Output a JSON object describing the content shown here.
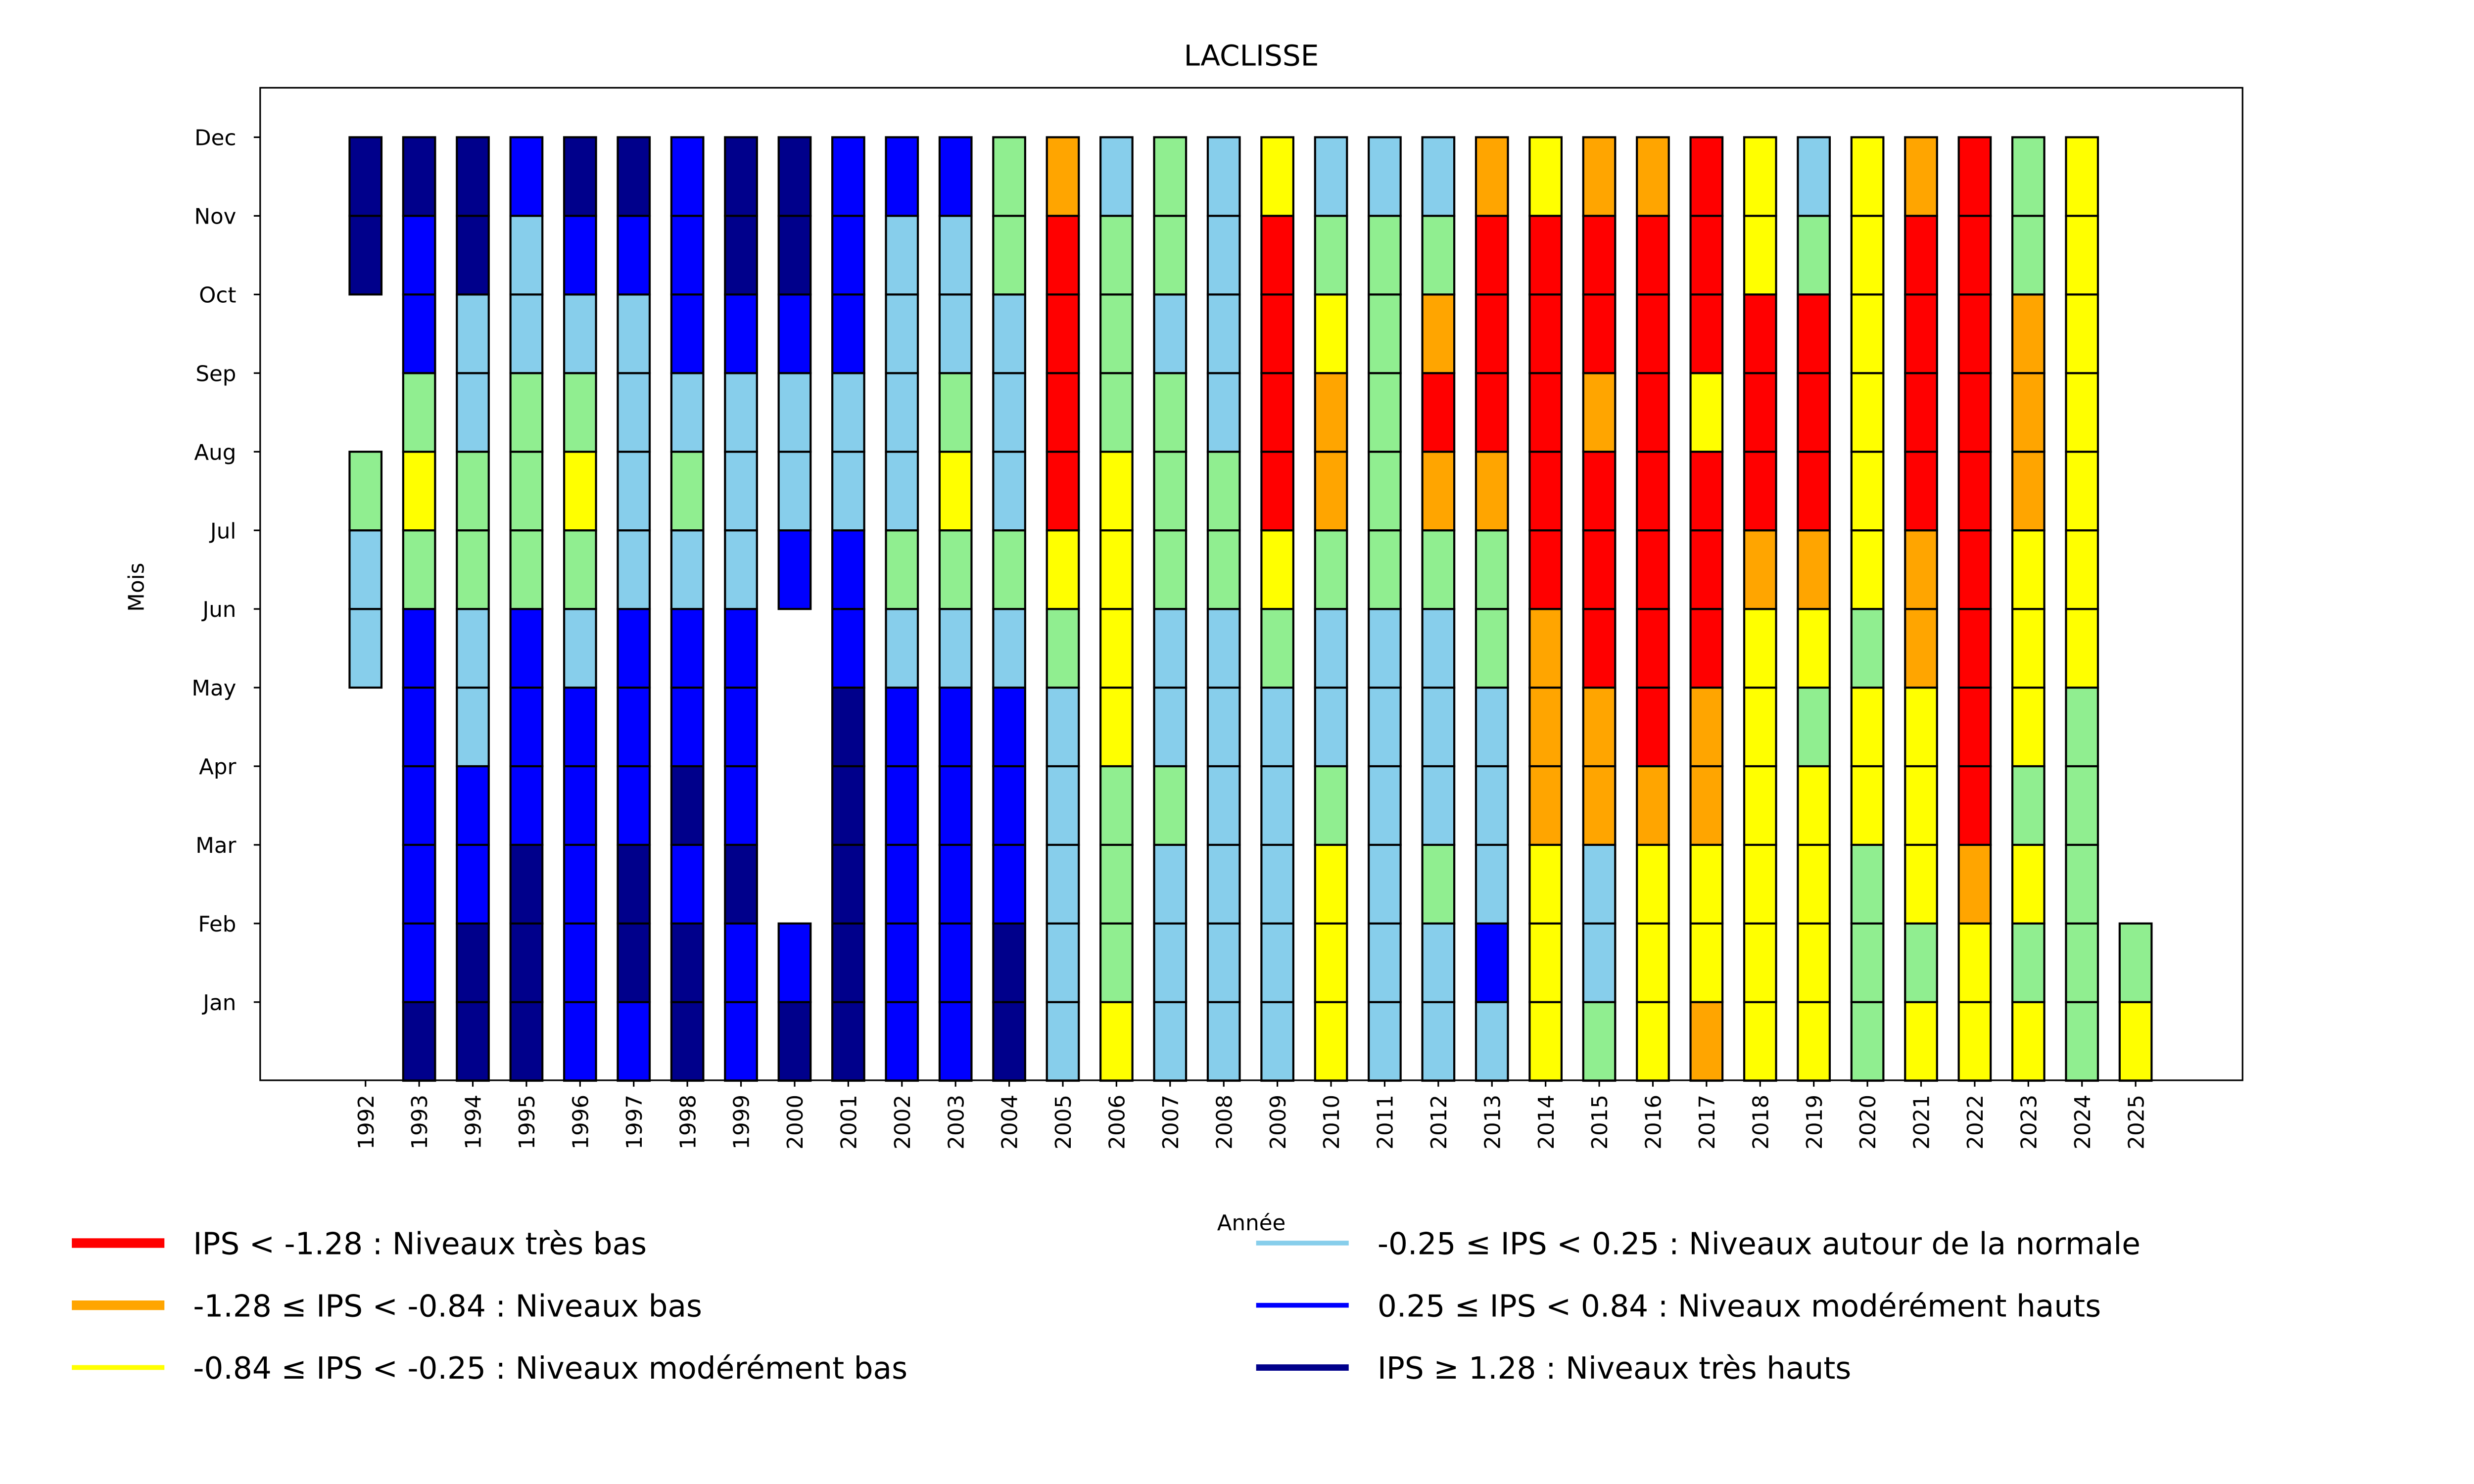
{
  "chart_data": {
    "type": "heatmap",
    "title": "LACLISSE",
    "xlabel": "Année",
    "ylabel": "Mois",
    "months": [
      "Jan",
      "Feb",
      "Mar",
      "Apr",
      "May",
      "Jun",
      "Jul",
      "Aug",
      "Sep",
      "Oct",
      "Nov",
      "Dec"
    ],
    "years": [
      "1992",
      "1993",
      "1994",
      "1995",
      "1996",
      "1997",
      "1998",
      "1999",
      "2000",
      "2001",
      "2002",
      "2003",
      "2004",
      "2005",
      "2006",
      "2007",
      "2008",
      "2009",
      "2010",
      "2011",
      "2012",
      "2013",
      "2014",
      "2015",
      "2016",
      "2017",
      "2018",
      "2019",
      "2020",
      "2021",
      "2022",
      "2023",
      "2024",
      "2025"
    ],
    "categories": {
      "R": {
        "color": "#ff0000",
        "label": "IPS < -1.28 : Niveaux très bas"
      },
      "O": {
        "color": "#ffa500",
        "label": "-1.28 ≤ IPS < -0.84 : Niveaux bas"
      },
      "Y": {
        "color": "#ffff00",
        "label": "-0.84 ≤ IPS < -0.25 : Niveaux modérément bas"
      },
      "G": {
        "color": "#90ee90",
        "label": ""
      },
      "L": {
        "color": "#87ceeb",
        "label": "-0.25 ≤ IPS < 0.25 : Niveaux autour de la normale"
      },
      "B": {
        "color": "#0000ff",
        "label": "0.25 ≤ IPS < 0.84 : Niveaux modérément hauts"
      },
      "D": {
        "color": "#00008b",
        "label": "IPS ≥ 1.28 : Niveaux très hauts"
      }
    },
    "values_jan_to_dec": {
      "1992": [
        null,
        null,
        null,
        null,
        null,
        "L",
        "L",
        "G",
        null,
        null,
        "D",
        "D"
      ],
      "1993": [
        "D",
        "B",
        "B",
        "B",
        "B",
        "B",
        "G",
        "Y",
        "G",
        "B",
        "B",
        "D"
      ],
      "1994": [
        "D",
        "D",
        "B",
        "B",
        "L",
        "L",
        "G",
        "G",
        "L",
        "L",
        "D",
        "D"
      ],
      "1995": [
        "D",
        "D",
        "D",
        "B",
        "B",
        "B",
        "G",
        "G",
        "G",
        "L",
        "L",
        "B"
      ],
      "1996": [
        "B",
        "B",
        "B",
        "B",
        "B",
        "L",
        "G",
        "Y",
        "G",
        "L",
        "B",
        "D"
      ],
      "1997": [
        "B",
        "D",
        "D",
        "B",
        "B",
        "B",
        "L",
        "L",
        "L",
        "L",
        "B",
        "D"
      ],
      "1998": [
        "D",
        "D",
        "B",
        "D",
        "B",
        "B",
        "L",
        "G",
        "L",
        "B",
        "B",
        "B"
      ],
      "1999": [
        "B",
        "B",
        "D",
        "B",
        "B",
        "B",
        "L",
        "L",
        "L",
        "B",
        "D",
        "D"
      ],
      "2000": [
        "D",
        "B",
        null,
        null,
        null,
        null,
        "B",
        "L",
        "L",
        "B",
        "D",
        "D"
      ],
      "2001": [
        "D",
        "D",
        "D",
        "D",
        "D",
        "B",
        "B",
        "L",
        "L",
        "B",
        "B",
        "B"
      ],
      "2002": [
        "B",
        "B",
        "B",
        "B",
        "B",
        "L",
        "G",
        "L",
        "L",
        "L",
        "L",
        "B"
      ],
      "2003": [
        "B",
        "B",
        "B",
        "B",
        "B",
        "L",
        "G",
        "Y",
        "G",
        "L",
        "L",
        "B"
      ],
      "2004": [
        "D",
        "D",
        "B",
        "B",
        "B",
        "L",
        "G",
        "L",
        "L",
        "L",
        "G",
        "G"
      ],
      "2005": [
        "L",
        "L",
        "L",
        "L",
        "L",
        "G",
        "Y",
        "R",
        "R",
        "R",
        "R",
        "O"
      ],
      "2006": [
        "Y",
        "G",
        "G",
        "G",
        "Y",
        "Y",
        "Y",
        "Y",
        "G",
        "G",
        "G",
        "L"
      ],
      "2007": [
        "L",
        "L",
        "L",
        "G",
        "L",
        "L",
        "G",
        "G",
        "G",
        "L",
        "G",
        "G"
      ],
      "2008": [
        "L",
        "L",
        "L",
        "L",
        "L",
        "L",
        "G",
        "G",
        "L",
        "L",
        "L",
        "L"
      ],
      "2009": [
        "L",
        "L",
        "L",
        "L",
        "L",
        "G",
        "Y",
        "R",
        "R",
        "R",
        "R",
        "Y"
      ],
      "2010": [
        "Y",
        "Y",
        "Y",
        "G",
        "L",
        "L",
        "G",
        "O",
        "O",
        "Y",
        "G",
        "L"
      ],
      "2011": [
        "L",
        "L",
        "L",
        "L",
        "L",
        "L",
        "G",
        "G",
        "G",
        "G",
        "G",
        "L"
      ],
      "2012": [
        "L",
        "L",
        "G",
        "L",
        "L",
        "L",
        "G",
        "O",
        "R",
        "O",
        "G",
        "L"
      ],
      "2013": [
        "L",
        "B",
        "L",
        "L",
        "L",
        "G",
        "G",
        "O",
        "R",
        "R",
        "R",
        "O"
      ],
      "2014": [
        "Y",
        "Y",
        "Y",
        "O",
        "O",
        "O",
        "R",
        "R",
        "R",
        "R",
        "R",
        "Y"
      ],
      "2015": [
        "G",
        "L",
        "L",
        "O",
        "O",
        "R",
        "R",
        "R",
        "O",
        "R",
        "R",
        "O"
      ],
      "2016": [
        "Y",
        "Y",
        "Y",
        "O",
        "R",
        "R",
        "R",
        "R",
        "R",
        "R",
        "R",
        "O"
      ],
      "2017": [
        "O",
        "Y",
        "Y",
        "O",
        "O",
        "R",
        "R",
        "R",
        "Y",
        "R",
        "R",
        "R"
      ],
      "2018": [
        "Y",
        "Y",
        "Y",
        "Y",
        "Y",
        "Y",
        "O",
        "R",
        "R",
        "R",
        "Y",
        "Y"
      ],
      "2019": [
        "Y",
        "Y",
        "Y",
        "Y",
        "G",
        "Y",
        "O",
        "R",
        "R",
        "R",
        "G",
        "L"
      ],
      "2020": [
        "G",
        "G",
        "G",
        "Y",
        "Y",
        "G",
        "Y",
        "Y",
        "Y",
        "Y",
        "Y",
        "Y"
      ],
      "2021": [
        "Y",
        "G",
        "Y",
        "Y",
        "Y",
        "O",
        "O",
        "R",
        "R",
        "R",
        "R",
        "O"
      ],
      "2022": [
        "Y",
        "Y",
        "O",
        "R",
        "R",
        "R",
        "R",
        "R",
        "R",
        "R",
        "R",
        "R"
      ],
      "2023": [
        "Y",
        "G",
        "Y",
        "G",
        "Y",
        "Y",
        "Y",
        "O",
        "O",
        "O",
        "G",
        "G"
      ],
      "2024": [
        "G",
        "G",
        "G",
        "G",
        "G",
        "Y",
        "Y",
        "Y",
        "Y",
        "Y",
        "Y",
        "Y"
      ],
      "2025": [
        "Y",
        "G",
        null,
        null,
        null,
        null,
        null,
        null,
        null,
        null,
        null,
        null
      ]
    },
    "legend": {
      "placement": "bottom",
      "entries": [
        {
          "key": "R",
          "label": "IPS < -1.28 : Niveaux très bas"
        },
        {
          "key": "O",
          "label": "-1.28 ≤ IPS < -0.84 : Niveaux bas"
        },
        {
          "key": "Y",
          "label": "-0.84 ≤ IPS < -0.25 : Niveaux modérément bas"
        },
        {
          "key": "L",
          "label": "-0.25 ≤ IPS < 0.25 : Niveaux autour de la normale"
        },
        {
          "key": "B",
          "label": "0.25 ≤ IPS < 0.84 : Niveaux modérément hauts"
        },
        {
          "key": "D",
          "label": "IPS ≥ 1.28 : Niveaux très hauts"
        }
      ]
    },
    "grid": false
  }
}
